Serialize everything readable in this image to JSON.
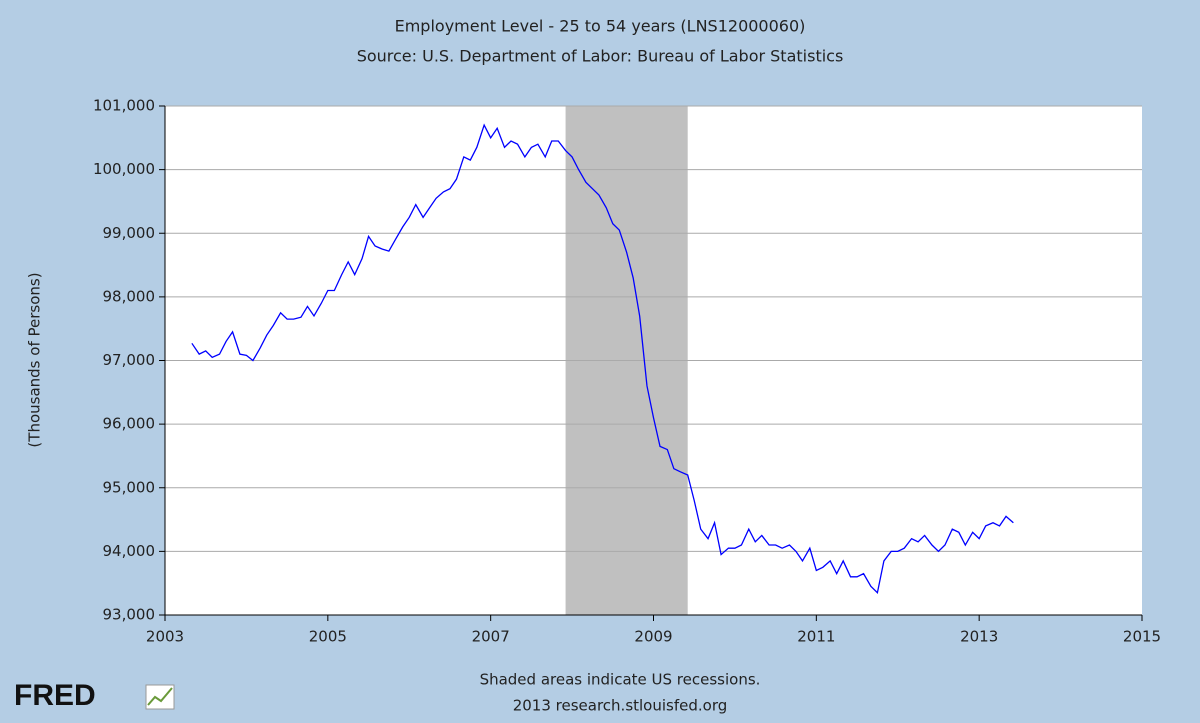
{
  "chart_data": {
    "type": "line",
    "title": "Employment Level - 25 to 54 years (LNS12000060)",
    "subtitle": "Source: U.S. Department of Labor: Bureau of Labor Statistics",
    "y_label": "(Thousands of Persons)",
    "note": "Shaded areas indicate US recessions.",
    "source": "2013 research.stlouisfed.org",
    "logo": "FRED",
    "recessions": [
      [
        2007.92,
        2009.42
      ]
    ],
    "recession_color": "#c0c0c0",
    "grid": true,
    "xlim": [
      2003,
      2015
    ],
    "xticks": [
      2003,
      2005,
      2007,
      2009,
      2011,
      2013,
      2015
    ],
    "ylim": [
      93000,
      101000
    ],
    "yticks": [
      {
        "value": 93000,
        "label": "93,000"
      },
      {
        "value": 94000,
        "label": "94,000"
      },
      {
        "value": 95000,
        "label": "95,000"
      },
      {
        "value": 96000,
        "label": "96,000"
      },
      {
        "value": 97000,
        "label": "97,000"
      },
      {
        "value": 98000,
        "label": "98,000"
      },
      {
        "value": 99000,
        "label": "99,000"
      },
      {
        "value": 100000,
        "label": "100,000"
      },
      {
        "value": 101000,
        "label": "101,000"
      }
    ],
    "x": [
      2003.33,
      2003.42,
      2003.5,
      2003.58,
      2003.67,
      2003.75,
      2003.83,
      2003.92,
      2004.0,
      2004.08,
      2004.17,
      2004.25,
      2004.33,
      2004.42,
      2004.5,
      2004.58,
      2004.67,
      2004.75,
      2004.83,
      2004.92,
      2005.0,
      2005.08,
      2005.17,
      2005.25,
      2005.33,
      2005.42,
      2005.5,
      2005.58,
      2005.67,
      2005.75,
      2005.83,
      2005.92,
      2006.0,
      2006.08,
      2006.17,
      2006.25,
      2006.33,
      2006.42,
      2006.5,
      2006.58,
      2006.67,
      2006.75,
      2006.83,
      2006.92,
      2007.0,
      2007.08,
      2007.17,
      2007.25,
      2007.33,
      2007.42,
      2007.5,
      2007.58,
      2007.67,
      2007.75,
      2007.83,
      2007.92,
      2008.0,
      2008.08,
      2008.17,
      2008.25,
      2008.33,
      2008.42,
      2008.5,
      2008.58,
      2008.67,
      2008.75,
      2008.83,
      2008.92,
      2009.0,
      2009.08,
      2009.17,
      2009.25,
      2009.33,
      2009.42,
      2009.5,
      2009.58,
      2009.67,
      2009.75,
      2009.83,
      2009.92,
      2010.0,
      2010.08,
      2010.17,
      2010.25,
      2010.33,
      2010.42,
      2010.5,
      2010.58,
      2010.67,
      2010.75,
      2010.83,
      2010.92,
      2011.0,
      2011.08,
      2011.17,
      2011.25,
      2011.33,
      2011.42,
      2011.5,
      2011.58,
      2011.67,
      2011.75,
      2011.83,
      2011.92,
      2012.0,
      2012.08,
      2012.17,
      2012.25,
      2012.33,
      2012.42,
      2012.5,
      2012.58,
      2012.67,
      2012.75,
      2012.83,
      2012.92,
      2013.0,
      2013.08,
      2013.17,
      2013.25,
      2013.33,
      2013.42
    ],
    "series": [
      {
        "name": "LNS12000060",
        "color": "#0000ff",
        "values": [
          97270,
          97100,
          97150,
          97050,
          97100,
          97300,
          97450,
          97100,
          97080,
          97000,
          97200,
          97400,
          97550,
          97750,
          97650,
          97650,
          97680,
          97850,
          97700,
          97900,
          98100,
          98100,
          98350,
          98550,
          98350,
          98600,
          98950,
          98800,
          98750,
          98720,
          98900,
          99100,
          99250,
          99450,
          99250,
          99400,
          99550,
          99650,
          99700,
          99850,
          100200,
          100150,
          100350,
          100700,
          100500,
          100650,
          100350,
          100450,
          100400,
          100200,
          100350,
          100400,
          100200,
          100450,
          100450,
          100300,
          100200,
          100000,
          99800,
          99700,
          99600,
          99400,
          99150,
          99050,
          98700,
          98300,
          97700,
          96600,
          96100,
          95650,
          95600,
          95300,
          95250,
          95200,
          94800,
          94350,
          94200,
          94450,
          93950,
          94050,
          94050,
          94100,
          94350,
          94150,
          94250,
          94100,
          94100,
          94050,
          94100,
          94000,
          93850,
          94050,
          93700,
          93750,
          93850,
          93650,
          93850,
          93600,
          93600,
          93650,
          93450,
          93350,
          93850,
          94000,
          94000,
          94050,
          94200,
          94150,
          94250,
          94100,
          94000,
          94100,
          94350,
          94300,
          94100,
          94300,
          94200,
          94400,
          94450,
          94400,
          94550,
          94450
        ]
      }
    ]
  }
}
